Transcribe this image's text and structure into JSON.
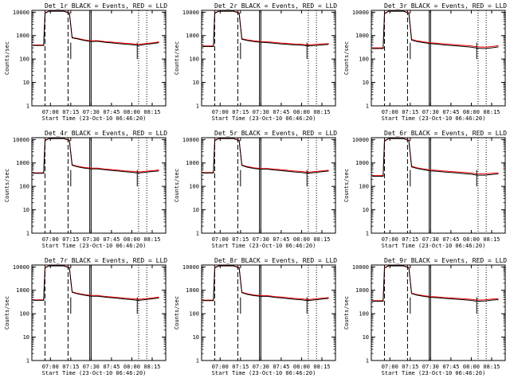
{
  "window": {
    "width_label": "640x480 detector count-rate plots"
  },
  "colors": {
    "events": "#000000",
    "lld": "#ff0000",
    "axes": "#000000",
    "background": "#ffffff"
  },
  "chart_data": [
    {
      "type": "line",
      "title": "Det_1r BLACK = Events, RED = LLD",
      "xlabel": "Start Time (23-Oct-10 06:46:20)",
      "ylabel": "Counts/sec",
      "yscale": "log",
      "ylim": [
        1,
        12000
      ],
      "xlim": [
        "06:46:20",
        "08:25"
      ],
      "xticks": [
        "07:00",
        "07:15",
        "07:30",
        "07:45",
        "08:00",
        "08:15"
      ],
      "yticks": [
        "1",
        "10",
        "100",
        "1000",
        "10000"
      ],
      "x": [
        "06:47",
        "06:55",
        "06:56",
        "06:59",
        "07:04",
        "07:10",
        "07:14",
        "07:16",
        "07:20",
        "07:25",
        "07:30",
        "07:35",
        "07:40",
        "07:45",
        "07:50",
        "07:55",
        "08:00",
        "08:03",
        "08:05",
        "08:10",
        "08:15",
        "08:20"
      ],
      "series": [
        {
          "name": "BLACK = Events",
          "values": [
            380,
            380,
            9000,
            11000,
            11000,
            11000,
            9000,
            800,
            720,
            620,
            560,
            570,
            520,
            490,
            460,
            430,
            410,
            390,
            380,
            420,
            450,
            500
          ]
        },
        {
          "name": "RED = LLD",
          "values": [
            400,
            400,
            9500,
            11500,
            11500,
            11500,
            9500,
            840,
            760,
            660,
            600,
            610,
            560,
            530,
            500,
            470,
            450,
            430,
            420,
            460,
            490,
            540
          ]
        }
      ],
      "vlines_dashed": [
        "06:56",
        "07:13"
      ],
      "vlines_solid": [
        "07:29",
        "07:30"
      ],
      "vlines_dotted": [
        "08:05",
        "08:11"
      ]
    },
    {
      "type": "line",
      "title": "Det_2r BLACK = Events, RED = LLD",
      "xlabel": "Start Time (23-Oct-10 06:46:20)",
      "ylabel": "Counts/sec",
      "yscale": "log",
      "ylim": [
        1,
        12000
      ],
      "xlim": [
        "06:46:20",
        "08:25"
      ],
      "xticks": [
        "07:00",
        "07:15",
        "07:30",
        "07:45",
        "08:00",
        "08:15"
      ],
      "yticks": [
        "1",
        "10",
        "100",
        "1000",
        "10000"
      ],
      "x": [
        "06:47",
        "06:55",
        "06:56",
        "06:59",
        "07:04",
        "07:10",
        "07:14",
        "07:16",
        "07:20",
        "07:25",
        "07:30",
        "07:35",
        "07:40",
        "07:45",
        "07:50",
        "07:55",
        "08:00",
        "08:03",
        "08:05",
        "08:10",
        "08:15",
        "08:20"
      ],
      "series": [
        {
          "name": "BLACK = Events",
          "values": [
            340,
            340,
            9000,
            11000,
            11000,
            11000,
            9000,
            700,
            620,
            560,
            520,
            500,
            470,
            440,
            420,
            400,
            390,
            370,
            360,
            380,
            400,
            420
          ]
        },
        {
          "name": "RED = LLD",
          "values": [
            360,
            360,
            9500,
            11500,
            11500,
            11500,
            9500,
            740,
            660,
            600,
            560,
            540,
            510,
            480,
            460,
            440,
            430,
            410,
            400,
            420,
            440,
            460
          ]
        }
      ],
      "vlines_dashed": [
        "06:56",
        "07:13"
      ],
      "vlines_solid": [
        "07:29",
        "07:30"
      ],
      "vlines_dotted": [
        "08:05",
        "08:11"
      ]
    },
    {
      "type": "line",
      "title": "Det_3r BLACK = Events, RED = LLD",
      "xlabel": "Start Time (23-Oct-10 06:46:20)",
      "ylabel": "Counts/sec",
      "yscale": "log",
      "ylim": [
        1,
        12000
      ],
      "xlim": [
        "06:46:20",
        "08:25"
      ],
      "xticks": [
        "07:00",
        "07:15",
        "07:30",
        "07:45",
        "08:00",
        "08:15"
      ],
      "yticks": [
        "1",
        "10",
        "100",
        "1000",
        "10000"
      ],
      "x": [
        "06:47",
        "06:55",
        "06:56",
        "06:59",
        "07:04",
        "07:10",
        "07:14",
        "07:16",
        "07:20",
        "07:25",
        "07:30",
        "07:35",
        "07:40",
        "07:45",
        "07:50",
        "07:55",
        "08:00",
        "08:03",
        "08:05",
        "08:10",
        "08:15",
        "08:20"
      ],
      "series": [
        {
          "name": "BLACK = Events",
          "values": [
            280,
            280,
            8500,
            11000,
            11000,
            11000,
            9000,
            650,
            560,
            500,
            450,
            430,
            400,
            380,
            360,
            340,
            320,
            300,
            290,
            280,
            300,
            330
          ]
        },
        {
          "name": "RED = LLD",
          "values": [
            300,
            300,
            9000,
            11500,
            11500,
            11500,
            9500,
            690,
            600,
            540,
            490,
            470,
            440,
            420,
            400,
            380,
            360,
            340,
            330,
            320,
            340,
            370
          ]
        }
      ],
      "vlines_dashed": [
        "06:56",
        "07:13"
      ],
      "vlines_solid": [
        "07:29",
        "07:30"
      ],
      "vlines_dotted": [
        "08:05",
        "08:11"
      ]
    },
    {
      "type": "line",
      "title": "Det_4r BLACK = Events, RED = LLD",
      "xlabel": "Start Time (23-Oct-10 06:46:20)",
      "ylabel": "Counts/sec",
      "yscale": "log",
      "ylim": [
        1,
        12000
      ],
      "xlim": [
        "06:46:20",
        "08:25"
      ],
      "xticks": [
        "07:00",
        "07:15",
        "07:30",
        "07:45",
        "08:00",
        "08:15"
      ],
      "yticks": [
        "1",
        "10",
        "100",
        "1000",
        "10000"
      ],
      "x": [
        "06:47",
        "06:55",
        "06:56",
        "06:59",
        "07:04",
        "07:10",
        "07:14",
        "07:16",
        "07:20",
        "07:25",
        "07:30",
        "07:35",
        "07:40",
        "07:45",
        "07:50",
        "07:55",
        "08:00",
        "08:03",
        "08:05",
        "08:10",
        "08:15",
        "08:20"
      ],
      "series": [
        {
          "name": "BLACK = Events",
          "values": [
            360,
            360,
            9000,
            11000,
            11000,
            11000,
            9000,
            800,
            680,
            600,
            560,
            560,
            510,
            480,
            450,
            420,
            400,
            380,
            370,
            400,
            430,
            460
          ]
        },
        {
          "name": "RED = LLD",
          "values": [
            380,
            380,
            9500,
            11500,
            11500,
            11500,
            9500,
            840,
            720,
            640,
            600,
            600,
            550,
            520,
            490,
            460,
            440,
            420,
            410,
            440,
            470,
            500
          ]
        }
      ],
      "vlines_dashed": [
        "06:56",
        "07:13"
      ],
      "vlines_solid": [
        "07:29",
        "07:30"
      ],
      "vlines_dotted": [
        "08:05",
        "08:11"
      ]
    },
    {
      "type": "line",
      "title": "Det_5r BLACK = Events, RED = LLD",
      "xlabel": "Start Time (23-Oct-10 06:46:20)",
      "ylabel": "Counts/sec",
      "yscale": "log",
      "ylim": [
        1,
        12000
      ],
      "xlim": [
        "06:46:20",
        "08:25"
      ],
      "xticks": [
        "07:00",
        "07:15",
        "07:30",
        "07:45",
        "08:00",
        "08:15"
      ],
      "yticks": [
        "1",
        "10",
        "100",
        "1000",
        "10000"
      ],
      "x": [
        "06:47",
        "06:55",
        "06:56",
        "06:59",
        "07:04",
        "07:10",
        "07:14",
        "07:16",
        "07:20",
        "07:25",
        "07:30",
        "07:35",
        "07:40",
        "07:45",
        "07:50",
        "07:55",
        "08:00",
        "08:03",
        "08:05",
        "08:10",
        "08:15",
        "08:20"
      ],
      "series": [
        {
          "name": "BLACK = Events",
          "values": [
            370,
            370,
            9000,
            11000,
            11000,
            11000,
            9000,
            780,
            660,
            580,
            540,
            540,
            500,
            470,
            440,
            410,
            390,
            370,
            360,
            390,
            420,
            450
          ]
        },
        {
          "name": "RED = LLD",
          "values": [
            390,
            390,
            9500,
            11500,
            11500,
            11500,
            9500,
            820,
            700,
            620,
            580,
            580,
            540,
            510,
            480,
            450,
            430,
            410,
            400,
            430,
            460,
            490
          ]
        }
      ],
      "vlines_dashed": [
        "06:56",
        "07:13"
      ],
      "vlines_solid": [
        "07:29",
        "07:30"
      ],
      "vlines_dotted": [
        "08:05",
        "08:11"
      ]
    },
    {
      "type": "line",
      "title": "Det_6r BLACK = Events, RED = LLD",
      "xlabel": "Start Time (23-Oct-10 06:46:20)",
      "ylabel": "Counts/sec",
      "yscale": "log",
      "ylim": [
        1,
        12000
      ],
      "xlim": [
        "06:46:20",
        "08:25"
      ],
      "xticks": [
        "07:00",
        "07:15",
        "07:30",
        "07:45",
        "08:00",
        "08:15"
      ],
      "yticks": [
        "1",
        "10",
        "100",
        "1000",
        "10000"
      ],
      "x": [
        "06:47",
        "06:55",
        "06:56",
        "06:59",
        "07:04",
        "07:10",
        "07:14",
        "07:16",
        "07:20",
        "07:25",
        "07:30",
        "07:35",
        "07:40",
        "07:45",
        "07:50",
        "07:55",
        "08:00",
        "08:03",
        "08:05",
        "08:10",
        "08:15",
        "08:20"
      ],
      "series": [
        {
          "name": "BLACK = Events",
          "values": [
            270,
            270,
            8500,
            11000,
            11000,
            11000,
            9000,
            680,
            580,
            510,
            460,
            440,
            410,
            390,
            370,
            350,
            330,
            310,
            300,
            300,
            320,
            340
          ]
        },
        {
          "name": "RED = LLD",
          "values": [
            290,
            290,
            9000,
            11500,
            11500,
            11500,
            9500,
            720,
            620,
            550,
            500,
            480,
            450,
            430,
            410,
            390,
            370,
            350,
            340,
            340,
            360,
            380
          ]
        }
      ],
      "vlines_dashed": [
        "06:56",
        "07:13"
      ],
      "vlines_solid": [
        "07:29",
        "07:30"
      ],
      "vlines_dotted": [
        "08:05",
        "08:11"
      ]
    },
    {
      "type": "line",
      "title": "Det_7r BLACK = Events, RED = LLD",
      "xlabel": "Start Time (23-Oct-10 06:46:20)",
      "ylabel": "Counts/sec",
      "yscale": "log",
      "ylim": [
        1,
        12000
      ],
      "xlim": [
        "06:46:20",
        "08:25"
      ],
      "xticks": [
        "07:00",
        "07:15",
        "07:30",
        "07:45",
        "08:00",
        "08:15"
      ],
      "yticks": [
        "1",
        "10",
        "100",
        "1000",
        "10000"
      ],
      "x": [
        "06:47",
        "06:55",
        "06:56",
        "06:59",
        "07:04",
        "07:10",
        "07:14",
        "07:16",
        "07:20",
        "07:25",
        "07:30",
        "07:35",
        "07:40",
        "07:45",
        "07:50",
        "07:55",
        "08:00",
        "08:03",
        "08:05",
        "08:10",
        "08:15",
        "08:20"
      ],
      "series": [
        {
          "name": "BLACK = Events",
          "values": [
            370,
            370,
            9000,
            11000,
            11000,
            11000,
            9000,
            820,
            700,
            620,
            560,
            560,
            510,
            480,
            450,
            420,
            400,
            380,
            370,
            400,
            430,
            470
          ]
        },
        {
          "name": "RED = LLD",
          "values": [
            390,
            390,
            9500,
            11500,
            11500,
            11500,
            9500,
            860,
            740,
            660,
            600,
            600,
            550,
            520,
            490,
            460,
            440,
            420,
            410,
            440,
            470,
            510
          ]
        }
      ],
      "vlines_dashed": [
        "06:56",
        "07:13"
      ],
      "vlines_solid": [
        "07:29",
        "07:30"
      ],
      "vlines_dotted": [
        "08:05",
        "08:11"
      ]
    },
    {
      "type": "line",
      "title": "Det_8r BLACK = Events, RED = LLD",
      "xlabel": "Start Time (23-Oct-10 06:46:20)",
      "ylabel": "Counts/sec",
      "yscale": "log",
      "ylim": [
        1,
        12000
      ],
      "xlim": [
        "06:46:20",
        "08:25"
      ],
      "xticks": [
        "07:00",
        "07:15",
        "07:30",
        "07:45",
        "08:00",
        "08:15"
      ],
      "yticks": [
        "1",
        "10",
        "100",
        "1000",
        "10000"
      ],
      "x": [
        "06:47",
        "06:55",
        "06:56",
        "06:59",
        "07:04",
        "07:10",
        "07:14",
        "07:16",
        "07:20",
        "07:25",
        "07:30",
        "07:35",
        "07:40",
        "07:45",
        "07:50",
        "07:55",
        "08:00",
        "08:03",
        "08:05",
        "08:10",
        "08:15",
        "08:20"
      ],
      "series": [
        {
          "name": "BLACK = Events",
          "values": [
            360,
            360,
            9000,
            11000,
            11000,
            11000,
            9000,
            790,
            670,
            590,
            550,
            550,
            500,
            470,
            440,
            410,
            390,
            370,
            360,
            390,
            420,
            450
          ]
        },
        {
          "name": "RED = LLD",
          "values": [
            380,
            380,
            9500,
            11500,
            11500,
            11500,
            9500,
            830,
            710,
            630,
            590,
            590,
            540,
            510,
            480,
            450,
            430,
            410,
            400,
            430,
            460,
            490
          ]
        }
      ],
      "vlines_dashed": [
        "06:56",
        "07:13"
      ],
      "vlines_solid": [
        "07:29",
        "07:30"
      ],
      "vlines_dotted": [
        "08:05",
        "08:11"
      ]
    },
    {
      "type": "line",
      "title": "Det_9r BLACK = Events, RED = LLD",
      "xlabel": "Start Time (23-Oct-10 06:46:20)",
      "ylabel": "Counts/sec",
      "yscale": "log",
      "ylim": [
        1,
        12000
      ],
      "xlim": [
        "06:46:20",
        "08:25"
      ],
      "xticks": [
        "07:00",
        "07:15",
        "07:30",
        "07:45",
        "08:00",
        "08:15"
      ],
      "yticks": [
        "1",
        "10",
        "100",
        "1000",
        "10000"
      ],
      "x": [
        "06:47",
        "06:55",
        "06:56",
        "06:59",
        "07:04",
        "07:10",
        "07:14",
        "07:16",
        "07:20",
        "07:25",
        "07:30",
        "07:35",
        "07:40",
        "07:45",
        "07:50",
        "07:55",
        "08:00",
        "08:03",
        "08:05",
        "08:10",
        "08:15",
        "08:20"
      ],
      "series": [
        {
          "name": "BLACK = Events",
          "values": [
            340,
            340,
            8800,
            11000,
            11000,
            11000,
            9000,
            720,
            620,
            550,
            500,
            480,
            450,
            430,
            410,
            390,
            370,
            350,
            340,
            350,
            380,
            400
          ]
        },
        {
          "name": "RED = LLD",
          "values": [
            360,
            360,
            9300,
            11500,
            11500,
            11500,
            9500,
            760,
            660,
            590,
            540,
            520,
            490,
            470,
            450,
            430,
            410,
            390,
            380,
            390,
            420,
            440
          ]
        }
      ],
      "vlines_dashed": [
        "06:56",
        "07:13"
      ],
      "vlines_solid": [
        "07:29",
        "07:30"
      ],
      "vlines_dotted": [
        "08:05",
        "08:11"
      ]
    }
  ]
}
